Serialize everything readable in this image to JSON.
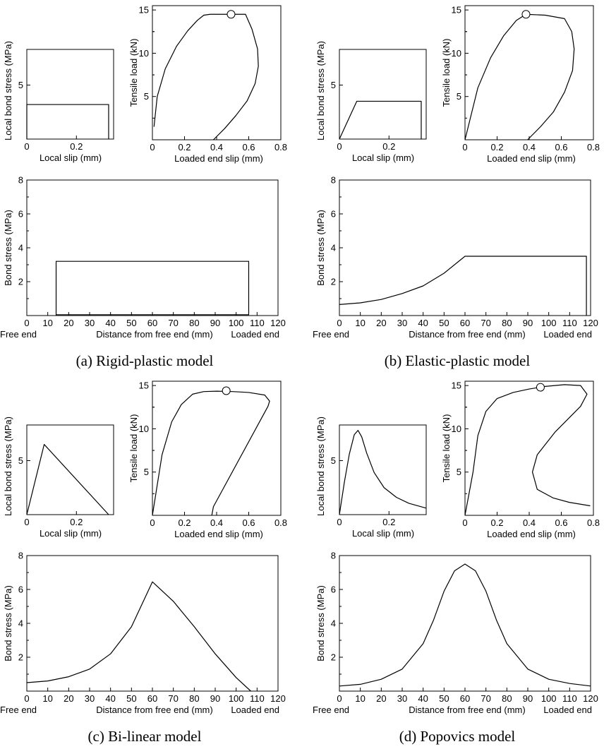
{
  "labels": {
    "local_bond_stress": "Local bond stress (MPa)",
    "local_slip": "Local slip (mm)",
    "tensile_load": "Tensile load (kN)",
    "loaded_end_slip": "Loaded end slip (mm)",
    "bond_stress": "Bond stress (MPa)",
    "free_end": "Free end",
    "distance": "Distance from free end (mm)",
    "loaded_end": "Loaded end"
  },
  "chart_data": [
    {
      "panel": "a",
      "caption": "(a) Rigid-plastic model",
      "bond_slip": {
        "type": "line",
        "xlabel": "Local slip (mm)",
        "ylabel": "Local bond stress (MPa)",
        "xlim": [
          0,
          0.35
        ],
        "ylim": [
          0,
          8.3
        ],
        "xticks": [
          0,
          0.2
        ],
        "yticks": [
          5
        ],
        "x": [
          0,
          0,
          0.33,
          0.33
        ],
        "y": [
          0,
          3.2,
          3.2,
          0
        ]
      },
      "load_slip": {
        "type": "line",
        "xlabel": "Loaded end slip (mm)",
        "ylabel": "Tensile load (kN)",
        "xlim": [
          0,
          0.8
        ],
        "ylim": [
          0,
          15.5
        ],
        "xticks": [
          0,
          0.2,
          0.4,
          0.6,
          0.8
        ],
        "yticks": [
          5,
          10,
          15
        ],
        "x": [
          0.01,
          0.03,
          0.08,
          0.15,
          0.22,
          0.28,
          0.32,
          0.36,
          0.58,
          0.62,
          0.655,
          0.66,
          0.64,
          0.59,
          0.52,
          0.45,
          0.38
        ],
        "y": [
          1.5,
          5,
          8.2,
          10.8,
          12.6,
          13.8,
          14.4,
          14.5,
          14.5,
          12.8,
          10.5,
          8.5,
          6.5,
          4.5,
          2.8,
          1.3,
          0
        ],
        "peak": {
          "x": 0.49,
          "y": 14.5
        }
      },
      "bond_dist": {
        "type": "line",
        "xlabel": "Distance from free end (mm)",
        "ylabel": "Bond stress (MPa)",
        "xlim": [
          0,
          120
        ],
        "ylim": [
          0,
          8
        ],
        "xticks": [
          0,
          10,
          20,
          30,
          40,
          50,
          60,
          70,
          80,
          90,
          100,
          110,
          120
        ],
        "yticks": [
          2,
          4,
          6,
          8
        ],
        "x": [
          14,
          14,
          106,
          106,
          14
        ],
        "y": [
          0,
          3.2,
          3.2,
          0.05,
          0.05
        ]
      }
    },
    {
      "panel": "b",
      "caption": "(b) Elastic-plastic model",
      "bond_slip": {
        "type": "line",
        "xlabel": "Local slip (mm)",
        "ylabel": "Local bond stress (MPa)",
        "xlim": [
          0,
          0.35
        ],
        "ylim": [
          0,
          8.3
        ],
        "xticks": [
          0,
          0.2
        ],
        "yticks": [
          5
        ],
        "x": [
          0,
          0.07,
          0.33,
          0.33
        ],
        "y": [
          0,
          3.5,
          3.5,
          0
        ]
      },
      "load_slip": {
        "type": "line",
        "xlabel": "Loaded end slip (mm)",
        "ylabel": "Tensile load (kN)",
        "xlim": [
          0,
          0.8
        ],
        "ylim": [
          0,
          15.5
        ],
        "xticks": [
          0,
          0.2,
          0.4,
          0.6,
          0.8
        ],
        "yticks": [
          5,
          10,
          15
        ],
        "x": [
          0,
          0.08,
          0.16,
          0.24,
          0.32,
          0.38,
          0.5,
          0.62,
          0.665,
          0.68,
          0.67,
          0.62,
          0.55,
          0.47,
          0.39
        ],
        "y": [
          0,
          6,
          9.5,
          12,
          13.8,
          14.5,
          14.4,
          14,
          12.5,
          10.5,
          8,
          5.5,
          3.2,
          1.5,
          0
        ],
        "peak": {
          "x": 0.38,
          "y": 14.5
        }
      },
      "bond_dist": {
        "type": "line",
        "xlabel": "Distance from free end (mm)",
        "ylabel": "Bond stress (MPa)",
        "xlim": [
          0,
          120
        ],
        "ylim": [
          0,
          8
        ],
        "xticks": [
          0,
          10,
          20,
          30,
          40,
          50,
          60,
          70,
          80,
          90,
          100,
          110,
          120
        ],
        "yticks": [
          2,
          4,
          6,
          8
        ],
        "x": [
          0,
          10,
          20,
          30,
          40,
          50,
          60,
          118,
          118
        ],
        "y": [
          0.65,
          0.75,
          0.95,
          1.3,
          1.75,
          2.5,
          3.5,
          3.5,
          0
        ]
      }
    },
    {
      "panel": "c",
      "caption": "(c) Bi-linear model",
      "bond_slip": {
        "type": "line",
        "xlabel": "Local slip (mm)",
        "ylabel": "Local bond stress (MPa)",
        "xlim": [
          0,
          0.35
        ],
        "ylim": [
          0,
          8.3
        ],
        "xticks": [
          0,
          0.2
        ],
        "yticks": [
          5
        ],
        "x": [
          0,
          0.07,
          0.33
        ],
        "y": [
          0,
          6.5,
          0
        ]
      },
      "load_slip": {
        "type": "line",
        "xlabel": "Loaded end slip (mm)",
        "ylabel": "Tensile load (kN)",
        "xlim": [
          0,
          0.8
        ],
        "ylim": [
          0,
          15.5
        ],
        "xticks": [
          0,
          0.2,
          0.4,
          0.6,
          0.8
        ],
        "yticks": [
          5,
          10,
          15
        ],
        "x": [
          0,
          0.06,
          0.12,
          0.18,
          0.25,
          0.32,
          0.4,
          0.5,
          0.6,
          0.7,
          0.73,
          0.72,
          0.38,
          0.37
        ],
        "y": [
          0,
          7,
          10.8,
          12.8,
          14,
          14.3,
          14.35,
          14.3,
          14.2,
          13.9,
          13.2,
          12.6,
          1,
          0
        ],
        "peak": {
          "x": 0.46,
          "y": 14.4
        }
      },
      "bond_dist": {
        "type": "line",
        "xlabel": "Distance from free end (mm)",
        "ylabel": "Bond stress (MPa)",
        "xlim": [
          0,
          120
        ],
        "ylim": [
          0,
          8
        ],
        "xticks": [
          0,
          10,
          20,
          30,
          40,
          50,
          60,
          70,
          80,
          90,
          100,
          110,
          120
        ],
        "yticks": [
          2,
          4,
          6,
          8
        ],
        "x": [
          0,
          10,
          20,
          30,
          40,
          50,
          60,
          70,
          80,
          90,
          100,
          107
        ],
        "y": [
          0.5,
          0.6,
          0.85,
          1.3,
          2.2,
          3.8,
          6.45,
          5.3,
          3.8,
          2.2,
          0.8,
          0
        ]
      }
    },
    {
      "panel": "d",
      "caption": "(d) Popovics model",
      "bond_slip": {
        "type": "line",
        "xlabel": "Local slip (mm)",
        "ylabel": "Local bond stress (MPa)",
        "xlim": [
          0,
          0.35
        ],
        "ylim": [
          0,
          8.3
        ],
        "xticks": [
          0,
          0.2
        ],
        "yticks": [
          5
        ],
        "x": [
          0,
          0.02,
          0.04,
          0.06,
          0.075,
          0.09,
          0.11,
          0.14,
          0.18,
          0.23,
          0.28,
          0.35
        ],
        "y": [
          0,
          3,
          5.6,
          7.4,
          7.8,
          7.2,
          5.7,
          3.9,
          2.5,
          1.6,
          1.05,
          0.6
        ]
      },
      "load_slip": {
        "type": "line",
        "xlabel": "Loaded end slip (mm)",
        "ylabel": "Tensile load (kN)",
        "xlim": [
          0,
          0.8
        ],
        "ylim": [
          0,
          15.5
        ],
        "xticks": [
          0,
          0.2,
          0.4,
          0.6,
          0.8
        ],
        "yticks": [
          5,
          10,
          15
        ],
        "x": [
          0,
          0.05,
          0.08,
          0.13,
          0.2,
          0.3,
          0.4,
          0.5,
          0.62,
          0.72,
          0.76,
          0.72,
          0.56,
          0.45,
          0.42,
          0.45,
          0.55,
          0.65,
          0.78
        ],
        "y": [
          0,
          5,
          9.2,
          12,
          13.5,
          14.2,
          14.6,
          14.9,
          15.1,
          15,
          14,
          12.6,
          9.6,
          7,
          5,
          3,
          2,
          1.5,
          1.1
        ],
        "peak": {
          "x": 0.47,
          "y": 14.8
        }
      },
      "bond_dist": {
        "type": "line",
        "xlabel": "Distance from free end (mm)",
        "ylabel": "Bond stress (MPa)",
        "xlim": [
          0,
          120
        ],
        "ylim": [
          0,
          8
        ],
        "xticks": [
          0,
          10,
          20,
          30,
          40,
          50,
          60,
          70,
          80,
          90,
          100,
          110,
          120
        ],
        "yticks": [
          2,
          4,
          6,
          8
        ],
        "x": [
          0,
          10,
          20,
          30,
          40,
          45,
          50,
          55,
          60,
          65,
          70,
          75,
          80,
          90,
          100,
          110,
          120
        ],
        "y": [
          0.3,
          0.4,
          0.7,
          1.3,
          2.8,
          4.2,
          5.9,
          7.1,
          7.5,
          7.1,
          5.9,
          4.2,
          2.8,
          1.3,
          0.7,
          0.45,
          0.3
        ]
      }
    }
  ]
}
